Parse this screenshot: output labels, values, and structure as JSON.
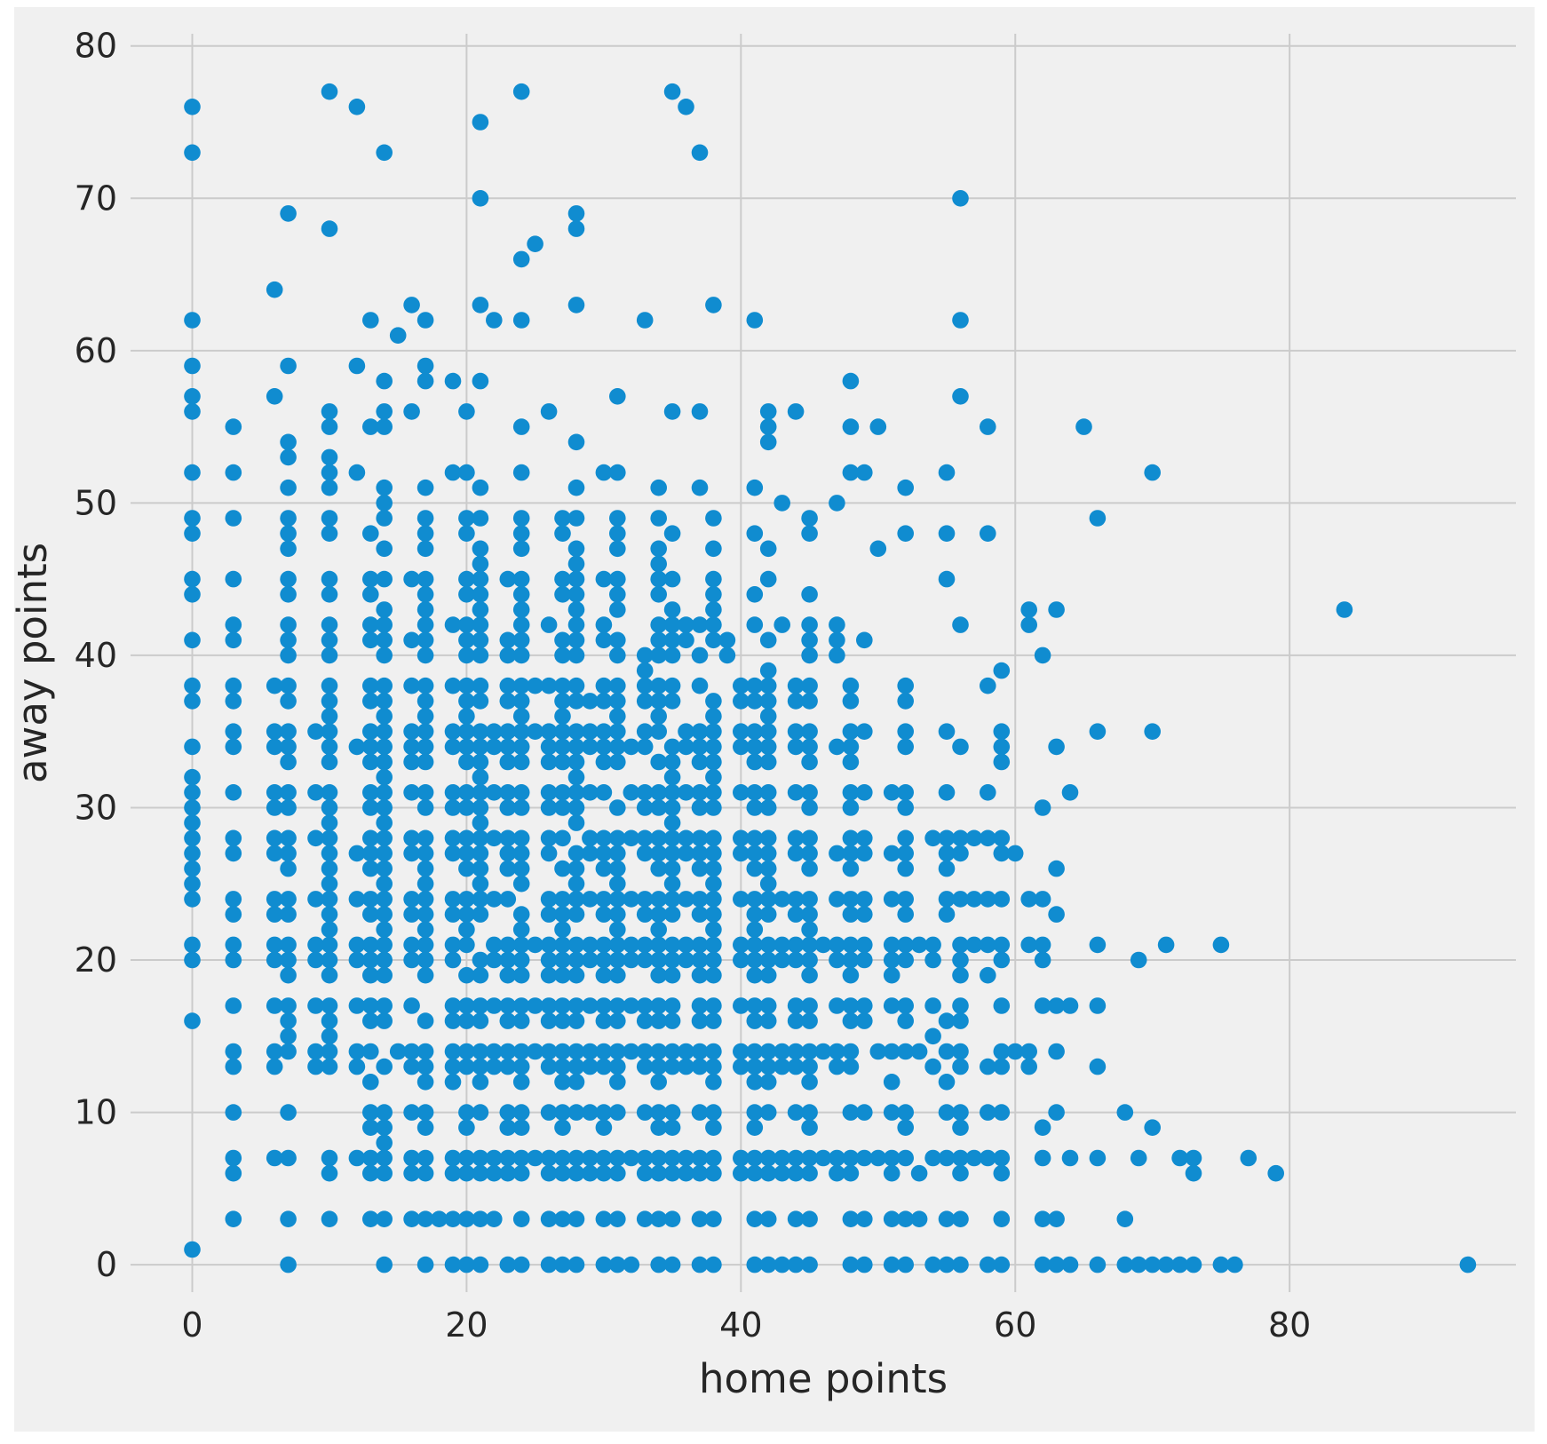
{
  "figure": {
    "page_background": "#ffffff",
    "background": "#f0f0f0"
  },
  "chart_data": {
    "type": "scatter",
    "title": "",
    "xlabel": "home points",
    "ylabel": "away points",
    "xticks": [
      0,
      20,
      40,
      60,
      80
    ],
    "yticks": [
      0,
      10,
      20,
      30,
      40,
      50,
      60,
      70,
      80
    ],
    "xlim": [
      -4.5,
      96.5
    ],
    "ylim": [
      -1.8,
      80.8
    ],
    "grid": true,
    "legend_position": "none",
    "grid_color": "#cbcbcb",
    "text_color": "#262626",
    "marker": {
      "color": "#108cd0",
      "radius_px": 9.3
    },
    "x_series_name": "home points",
    "y_series_name": "away points",
    "points_by_away": {
      "0": [
        7,
        14,
        17,
        19,
        20,
        21,
        23,
        24,
        26,
        27,
        28,
        30,
        31,
        32,
        34,
        35,
        37,
        38,
        41,
        42,
        43,
        44,
        45,
        48,
        49,
        51,
        52,
        54,
        55,
        56,
        58,
        59,
        62,
        63,
        64,
        66,
        68,
        69,
        70,
        71,
        72,
        73,
        75,
        76,
        93
      ],
      "1": [
        0
      ],
      "3": [
        3,
        7,
        10,
        13,
        14,
        16,
        17,
        18,
        19,
        20,
        21,
        22,
        24,
        26,
        27,
        28,
        30,
        31,
        33,
        34,
        35,
        37,
        38,
        41,
        42,
        44,
        45,
        48,
        49,
        51,
        52,
        53,
        55,
        56,
        59,
        62,
        63,
        68
      ],
      "6": [
        3,
        10,
        13,
        14,
        16,
        17,
        19,
        20,
        21,
        22,
        23,
        24,
        26,
        27,
        28,
        29,
        30,
        31,
        33,
        34,
        35,
        36,
        37,
        38,
        40,
        41,
        42,
        43,
        44,
        45,
        47,
        48,
        51,
        53,
        56,
        59,
        73,
        79
      ],
      "7": [
        3,
        6,
        7,
        10,
        12,
        13,
        14,
        16,
        17,
        19,
        20,
        21,
        22,
        23,
        24,
        25,
        26,
        27,
        28,
        29,
        30,
        31,
        32,
        33,
        34,
        35,
        36,
        37,
        38,
        40,
        41,
        42,
        43,
        44,
        45,
        46,
        47,
        48,
        49,
        50,
        51,
        52,
        54,
        55,
        56,
        57,
        58,
        59,
        62,
        64,
        66,
        69,
        72,
        73,
        77
      ],
      "8": [
        14
      ],
      "9": [
        13,
        14,
        17,
        20,
        23,
        24,
        27,
        30,
        34,
        35,
        38,
        41,
        45,
        52,
        56,
        62,
        70
      ],
      "10": [
        3,
        7,
        13,
        14,
        16,
        17,
        20,
        21,
        23,
        24,
        26,
        27,
        28,
        29,
        30,
        31,
        33,
        34,
        35,
        37,
        38,
        41,
        42,
        44,
        45,
        48,
        49,
        51,
        52,
        55,
        56,
        58,
        59,
        63,
        68
      ],
      "12": [
        13,
        17,
        19,
        21,
        24,
        27,
        28,
        31,
        34,
        38,
        41,
        42,
        45,
        51,
        55
      ],
      "13": [
        3,
        6,
        9,
        10,
        12,
        14,
        16,
        17,
        19,
        20,
        21,
        22,
        23,
        24,
        26,
        27,
        28,
        29,
        30,
        31,
        33,
        34,
        35,
        36,
        37,
        38,
        40,
        41,
        42,
        43,
        44,
        45,
        47,
        48,
        54,
        56,
        58,
        59,
        61,
        66
      ],
      "14": [
        3,
        6,
        7,
        9,
        10,
        12,
        13,
        15,
        16,
        17,
        19,
        20,
        21,
        22,
        23,
        24,
        25,
        26,
        27,
        28,
        29,
        30,
        31,
        32,
        33,
        34,
        35,
        36,
        37,
        38,
        40,
        41,
        42,
        43,
        44,
        45,
        46,
        47,
        48,
        50,
        51,
        52,
        53,
        55,
        56,
        59,
        60,
        61,
        63
      ],
      "15": [
        7,
        10,
        54
      ],
      "16": [
        0,
        7,
        10,
        13,
        14,
        17,
        19,
        20,
        21,
        23,
        24,
        26,
        27,
        28,
        30,
        31,
        33,
        34,
        35,
        37,
        38,
        41,
        42,
        44,
        45,
        48,
        49,
        52,
        55,
        56
      ],
      "17": [
        3,
        6,
        7,
        9,
        10,
        12,
        13,
        14,
        16,
        19,
        20,
        21,
        22,
        23,
        24,
        25,
        26,
        27,
        28,
        29,
        30,
        31,
        32,
        33,
        34,
        35,
        37,
        38,
        40,
        41,
        42,
        44,
        45,
        47,
        48,
        49,
        51,
        52,
        54,
        56,
        59,
        62,
        63,
        64,
        66
      ],
      "19": [
        7,
        10,
        13,
        14,
        17,
        20,
        21,
        23,
        24,
        26,
        27,
        28,
        30,
        31,
        34,
        35,
        37,
        38,
        41,
        42,
        45,
        48,
        51,
        56,
        58
      ],
      "20": [
        0,
        3,
        6,
        7,
        9,
        10,
        12,
        13,
        14,
        16,
        17,
        19,
        21,
        22,
        23,
        24,
        26,
        27,
        28,
        29,
        30,
        31,
        32,
        33,
        34,
        35,
        36,
        37,
        38,
        40,
        41,
        42,
        43,
        44,
        45,
        47,
        48,
        49,
        51,
        52,
        54,
        56,
        59,
        62,
        69
      ],
      "21": [
        0,
        3,
        6,
        7,
        9,
        10,
        12,
        13,
        14,
        16,
        17,
        19,
        20,
        22,
        23,
        24,
        25,
        26,
        27,
        28,
        29,
        30,
        31,
        32,
        33,
        34,
        35,
        36,
        37,
        38,
        40,
        41,
        42,
        43,
        44,
        45,
        46,
        47,
        48,
        49,
        51,
        52,
        53,
        54,
        56,
        57,
        58,
        59,
        61,
        62,
        66,
        71,
        75
      ],
      "22": [
        10,
        14,
        17,
        20,
        24,
        27,
        31,
        34,
        38,
        41,
        45
      ],
      "23": [
        3,
        6,
        7,
        10,
        13,
        14,
        16,
        17,
        19,
        20,
        21,
        24,
        26,
        27,
        28,
        30,
        31,
        33,
        34,
        35,
        37,
        38,
        41,
        42,
        44,
        45,
        48,
        49,
        52,
        55,
        63
      ],
      "24": [
        0,
        3,
        6,
        7,
        9,
        10,
        12,
        13,
        14,
        16,
        17,
        19,
        20,
        21,
        22,
        23,
        26,
        27,
        28,
        29,
        30,
        31,
        32,
        33,
        34,
        35,
        36,
        37,
        38,
        40,
        41,
        42,
        43,
        44,
        45,
        47,
        48,
        49,
        51,
        52,
        55,
        56,
        57,
        58,
        59,
        61,
        62
      ],
      "25": [
        0,
        10,
        14,
        17,
        21,
        24,
        28,
        31,
        35,
        38,
        42
      ],
      "26": [
        0,
        7,
        10,
        13,
        14,
        17,
        20,
        21,
        23,
        24,
        27,
        28,
        30,
        31,
        34,
        35,
        37,
        38,
        41,
        42,
        45,
        48,
        52,
        55,
        63
      ],
      "27": [
        0,
        3,
        6,
        7,
        10,
        12,
        13,
        14,
        16,
        17,
        19,
        20,
        21,
        23,
        24,
        26,
        28,
        29,
        30,
        31,
        33,
        34,
        35,
        36,
        37,
        38,
        40,
        41,
        42,
        44,
        45,
        47,
        48,
        49,
        51,
        52,
        55,
        56,
        59,
        60
      ],
      "28": [
        0,
        3,
        6,
        7,
        9,
        10,
        13,
        14,
        16,
        17,
        19,
        20,
        21,
        22,
        23,
        24,
        26,
        27,
        29,
        30,
        31,
        32,
        33,
        34,
        35,
        36,
        37,
        38,
        40,
        41,
        42,
        44,
        45,
        48,
        49,
        52,
        54,
        55,
        56,
        57,
        58,
        59
      ],
      "29": [
        0,
        10,
        14,
        21,
        28,
        35
      ],
      "30": [
        0,
        6,
        7,
        10,
        13,
        14,
        17,
        19,
        20,
        21,
        23,
        24,
        26,
        27,
        28,
        31,
        33,
        34,
        35,
        37,
        38,
        41,
        42,
        45,
        48,
        52,
        62
      ],
      "31": [
        0,
        3,
        6,
        7,
        9,
        10,
        13,
        14,
        16,
        17,
        19,
        20,
        21,
        22,
        23,
        24,
        26,
        27,
        28,
        29,
        30,
        32,
        33,
        34,
        35,
        36,
        37,
        38,
        40,
        41,
        42,
        44,
        45,
        48,
        49,
        51,
        52,
        55,
        58,
        64
      ],
      "32": [
        0,
        14,
        21,
        28,
        35,
        38
      ],
      "33": [
        7,
        10,
        13,
        14,
        16,
        17,
        20,
        21,
        23,
        24,
        26,
        27,
        28,
        30,
        31,
        34,
        35,
        37,
        38,
        41,
        42,
        45,
        48,
        59
      ],
      "34": [
        0,
        3,
        6,
        7,
        10,
        12,
        13,
        14,
        16,
        17,
        19,
        20,
        21,
        22,
        23,
        24,
        26,
        27,
        28,
        29,
        30,
        31,
        32,
        33,
        35,
        36,
        37,
        38,
        40,
        41,
        42,
        44,
        45,
        47,
        48,
        52,
        56,
        59,
        63
      ],
      "35": [
        3,
        6,
        7,
        9,
        10,
        13,
        14,
        16,
        17,
        19,
        20,
        21,
        22,
        23,
        24,
        25,
        26,
        27,
        28,
        29,
        30,
        31,
        33,
        34,
        36,
        37,
        38,
        40,
        41,
        42,
        44,
        45,
        48,
        49,
        52,
        55,
        59,
        66,
        70
      ],
      "36": [
        10,
        14,
        17,
        20,
        24,
        27,
        31,
        34,
        38,
        42
      ],
      "37": [
        0,
        3,
        7,
        10,
        13,
        14,
        17,
        20,
        21,
        23,
        24,
        27,
        28,
        29,
        30,
        31,
        33,
        34,
        35,
        38,
        40,
        41,
        42,
        44,
        45,
        48,
        52
      ],
      "38": [
        0,
        3,
        6,
        7,
        10,
        13,
        14,
        16,
        17,
        19,
        20,
        21,
        23,
        24,
        25,
        26,
        27,
        28,
        30,
        31,
        33,
        34,
        35,
        37,
        40,
        41,
        42,
        44,
        45,
        48,
        52,
        58
      ],
      "39": [
        33,
        42,
        59
      ],
      "40": [
        7,
        10,
        14,
        17,
        20,
        21,
        23,
        24,
        27,
        28,
        31,
        33,
        34,
        35,
        37,
        39,
        45,
        47,
        62
      ],
      "41": [
        0,
        3,
        7,
        10,
        13,
        14,
        16,
        17,
        20,
        21,
        23,
        24,
        27,
        28,
        30,
        31,
        34,
        35,
        36,
        38,
        39,
        42,
        45,
        47,
        49
      ],
      "42": [
        3,
        7,
        10,
        13,
        14,
        17,
        19,
        20,
        21,
        24,
        26,
        28,
        30,
        34,
        35,
        36,
        37,
        38,
        41,
        43,
        45,
        47,
        56,
        61
      ],
      "43": [
        14,
        17,
        21,
        24,
        28,
        31,
        35,
        38,
        61,
        63,
        84
      ],
      "44": [
        0,
        7,
        10,
        13,
        17,
        20,
        21,
        24,
        27,
        28,
        31,
        34,
        38,
        41,
        45
      ],
      "45": [
        0,
        3,
        7,
        10,
        13,
        14,
        16,
        17,
        20,
        21,
        23,
        24,
        27,
        28,
        30,
        31,
        34,
        35,
        38,
        42,
        55
      ],
      "46": [
        21,
        28,
        34
      ],
      "47": [
        7,
        14,
        17,
        21,
        24,
        28,
        31,
        34,
        38,
        42,
        50
      ],
      "48": [
        0,
        7,
        10,
        13,
        17,
        20,
        24,
        27,
        31,
        35,
        41,
        45,
        52,
        55,
        58
      ],
      "49": [
        0,
        3,
        7,
        10,
        14,
        17,
        20,
        21,
        24,
        27,
        28,
        31,
        34,
        38,
        45,
        66
      ],
      "50": [
        14,
        43,
        47
      ],
      "51": [
        7,
        10,
        14,
        17,
        21,
        28,
        34,
        37,
        41,
        52
      ],
      "52": [
        0,
        3,
        10,
        12,
        19,
        20,
        24,
        30,
        31,
        48,
        49,
        55,
        70
      ],
      "53": [
        7,
        10
      ],
      "54": [
        7,
        28,
        42
      ],
      "55": [
        3,
        10,
        13,
        14,
        24,
        42,
        48,
        50,
        58,
        65
      ],
      "56": [
        0,
        10,
        14,
        16,
        20,
        26,
        35,
        37,
        42,
        44
      ],
      "57": [
        0,
        6,
        31,
        56
      ],
      "58": [
        14,
        17,
        19,
        21,
        48
      ],
      "59": [
        0,
        7,
        12,
        17
      ],
      "61": [
        15
      ],
      "62": [
        0,
        13,
        17,
        22,
        24,
        33,
        41,
        56
      ],
      "63": [
        16,
        21,
        28,
        38
      ],
      "64": [
        6
      ],
      "66": [
        24
      ],
      "67": [
        25
      ],
      "68": [
        10,
        28
      ],
      "69": [
        7,
        28
      ],
      "70": [
        21,
        56
      ],
      "73": [
        0,
        14,
        37
      ],
      "75": [
        21
      ],
      "76": [
        0,
        12,
        36
      ],
      "77": [
        10,
        24,
        35
      ]
    }
  }
}
